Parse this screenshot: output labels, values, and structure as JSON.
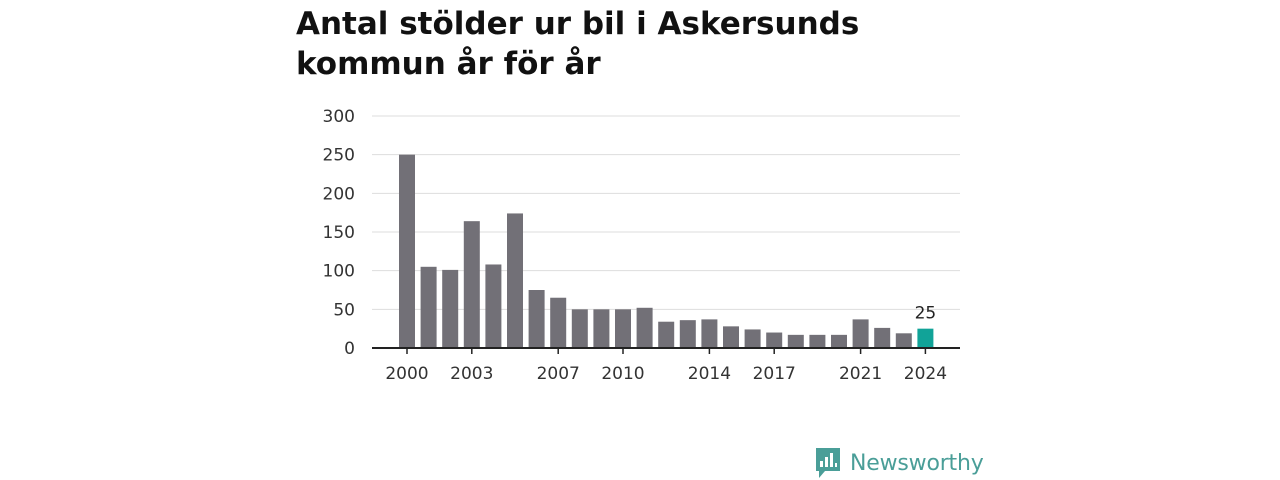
{
  "chart_data": {
    "type": "bar",
    "title": "Antal stölder ur bil i Askersunds kommun år för år",
    "xlabel": "",
    "ylabel": "",
    "x": [
      2000,
      2001,
      2002,
      2003,
      2004,
      2005,
      2006,
      2007,
      2008,
      2009,
      2010,
      2011,
      2012,
      2013,
      2014,
      2015,
      2016,
      2017,
      2018,
      2019,
      2020,
      2021,
      2022,
      2023,
      2024
    ],
    "values": [
      250,
      105,
      101,
      164,
      108,
      174,
      75,
      65,
      50,
      50,
      50,
      52,
      34,
      36,
      37,
      28,
      24,
      20,
      17,
      17,
      17,
      37,
      26,
      19,
      25
    ],
    "ylim": [
      0,
      300
    ],
    "yticks": [
      0,
      50,
      100,
      150,
      200,
      250,
      300
    ],
    "xticks": [
      2000,
      2003,
      2007,
      2010,
      2014,
      2017,
      2021,
      2024
    ],
    "grid": true,
    "legend": "none",
    "highlight": {
      "year": 2024,
      "label": "25"
    },
    "colors": {
      "bar": "#727077",
      "highlight": "#11a398",
      "grid": "#dddddd",
      "axis": "#222222"
    }
  },
  "branding": {
    "name": "Newsworthy",
    "logo_icon": "bar-chart-speech-bubble-icon",
    "color": "#4a9e98"
  }
}
